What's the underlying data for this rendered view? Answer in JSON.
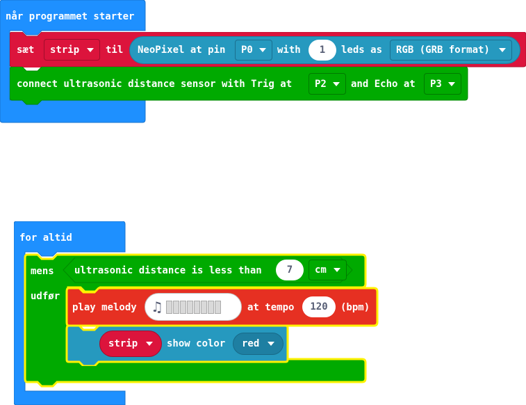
{
  "colors": {
    "basic_blue": "#1E90FF",
    "variables_red": "#DC143C",
    "neopixel_teal": "#2699BF",
    "sonar_green": "#00AA00",
    "music_red": "#E63022",
    "highlight_yellow": "#FFF200",
    "text_dark": "#575E75"
  },
  "on_start": {
    "hat_label": "når programmet starter",
    "set_block": {
      "keyword": "sæt",
      "variable": "strip",
      "to_label": "til",
      "neopixel": {
        "text_a": "NeoPixel at pin",
        "pin": "P0",
        "text_b": "with",
        "count": "1",
        "text_c": "leds as",
        "mode": "RGB (GRB format)"
      }
    },
    "sonar_connect": {
      "text_a": "connect ultrasonic distance sensor with Trig at",
      "trig_pin": "P2",
      "text_b": "and Echo at",
      "echo_pin": "P3"
    }
  },
  "forever": {
    "hat_label": "for altid",
    "while_block": {
      "keyword": "mens",
      "do_label": "udfør",
      "condition": {
        "text": "ultrasonic distance is less than",
        "value": "7",
        "unit": "cm"
      },
      "play_melody": {
        "label": "play melody",
        "melody_icon": "music-note-icon",
        "tempo_label": "at tempo",
        "tempo": "120",
        "bpm_label": "(bpm)"
      },
      "show_color": {
        "strip": "strip",
        "label": "show color",
        "color": "red"
      }
    }
  }
}
